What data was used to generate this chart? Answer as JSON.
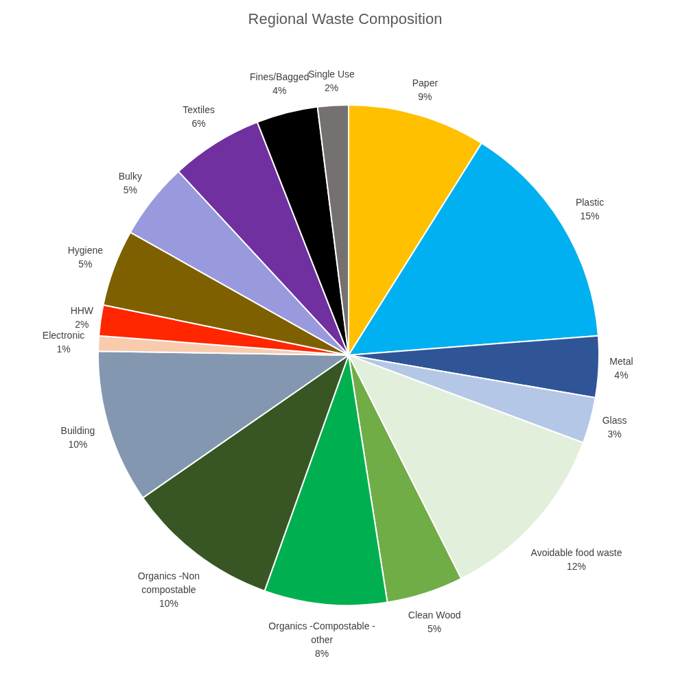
{
  "chart_data": {
    "type": "pie",
    "title": "Regional Waste Composition",
    "categories": [
      "Paper",
      "Plastic",
      "Metal",
      "Glass",
      "Avoidable food waste",
      "Clean Wood",
      "Organics -Compostable - other",
      "Organics -Non compostable",
      "Building",
      "Electronic",
      "HHW",
      "Hygiene",
      "Bulky",
      "Textiles",
      "Fines/Bagged",
      "Single Use"
    ],
    "values": [
      9,
      15,
      4,
      3,
      12,
      5,
      8,
      10,
      10,
      1,
      2,
      5,
      5,
      6,
      4,
      2
    ],
    "value_labels": [
      "9%",
      "15%",
      "4%",
      "3%",
      "12%",
      "5%",
      "8%",
      "10%",
      "10%",
      "1%",
      "2%",
      "5%",
      "5%",
      "6%",
      "4%",
      "2%"
    ],
    "colors": [
      "#ffc000",
      "#00b0f0",
      "#2f5597",
      "#b4c7e7",
      "#e2efda",
      "#70ad47",
      "#00b050",
      "#375623",
      "#8497b0",
      "#f8cbad",
      "#ff2600",
      "#7f6000",
      "#9999dd",
      "#7030a0",
      "#000000",
      "#767171"
    ]
  }
}
